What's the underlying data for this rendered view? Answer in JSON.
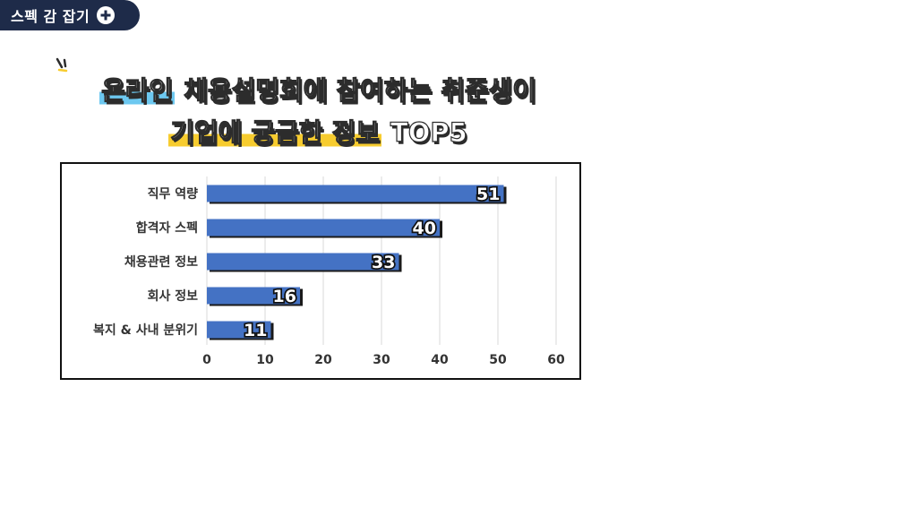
{
  "brand": {
    "label": "스펙 감 잡기",
    "icon": "plus-circle-icon"
  },
  "headline": {
    "line1_highlight": "온라인",
    "line1_rest": " 채용설명회에 참여하는 취준생이",
    "line2_highlight": "기업에 궁금한 정보",
    "line2_rest": " TOP5"
  },
  "colors": {
    "bar": "#4472c4",
    "grid": "#d9d9d9",
    "highlight_blue": "#6dc8f0",
    "highlight_yellow": "#f7cc2f"
  },
  "chart_data": {
    "type": "bar",
    "orientation": "horizontal",
    "categories": [
      "직무 역량",
      "합격자 스펙",
      "채용관련 정보",
      "회사 정보",
      "복지 & 사내 분위기"
    ],
    "values": [
      51,
      40,
      33,
      16,
      11
    ],
    "xlim": [
      0,
      60
    ],
    "x_ticks": [
      0,
      10,
      20,
      30,
      40,
      50,
      60
    ],
    "grid": true,
    "data_labels": true
  }
}
